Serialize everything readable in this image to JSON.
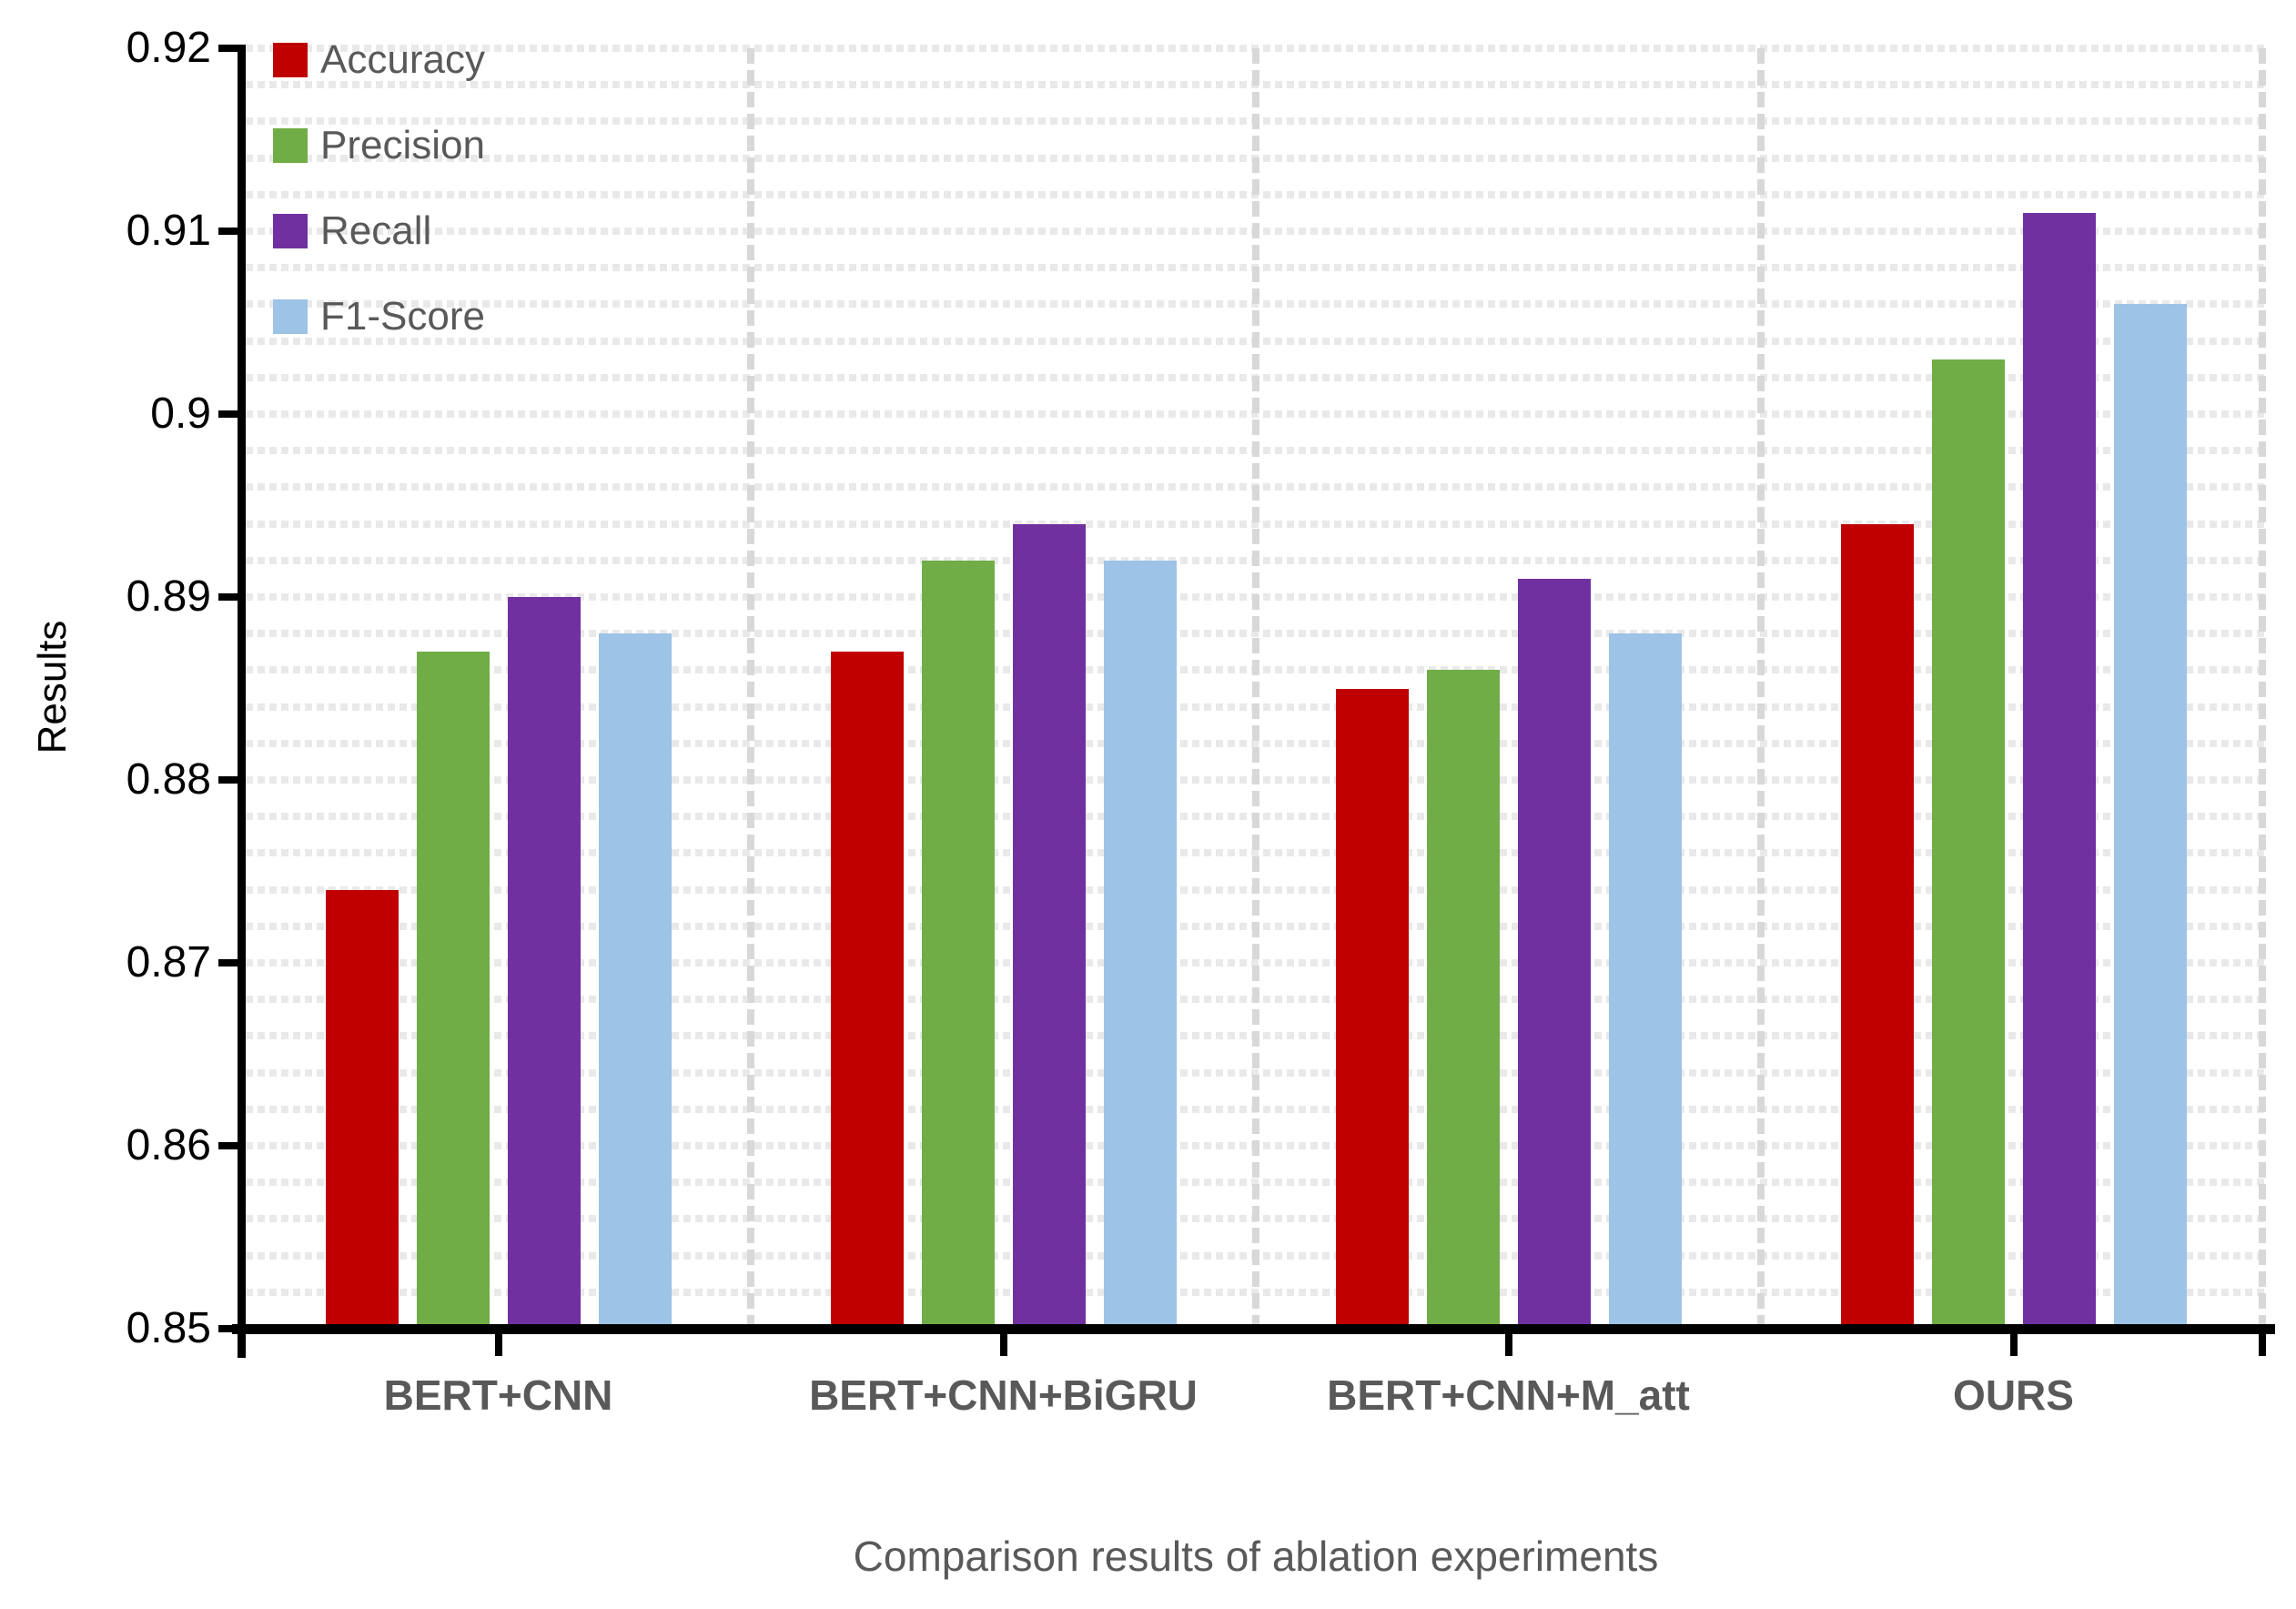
{
  "chart_data": {
    "type": "bar",
    "title": "Comparison results of ablation experiments",
    "ylabel": "Results",
    "xlabel": "",
    "categories": [
      "BERT+CNN",
      "BERT+CNN+BiGRU",
      "BERT+CNN+M_att",
      "OURS"
    ],
    "series": [
      {
        "name": "Accuracy",
        "color": "#C00000",
        "values": [
          0.874,
          0.887,
          0.885,
          0.894
        ]
      },
      {
        "name": "Precision",
        "color": "#70AD47",
        "values": [
          0.887,
          0.892,
          0.886,
          0.903
        ]
      },
      {
        "name": "Recall",
        "color": "#7030A0",
        "values": [
          0.89,
          0.894,
          0.891,
          0.911
        ]
      },
      {
        "name": "F1-Score",
        "color": "#9DC3E6",
        "values": [
          0.888,
          0.892,
          0.888,
          0.906
        ]
      }
    ],
    "ylim": [
      0.85,
      0.92
    ],
    "ytick_step": 0.01,
    "ytick_labels": [
      "0.85",
      "0.86",
      "0.87",
      "0.88",
      "0.89",
      "0.9",
      "0.91",
      "0.92"
    ],
    "minor_gridline_step": 0.002,
    "grid": "dotted horizontal minor gridlines; dashed vertical category separators",
    "legend_position": "top-left inside plot",
    "legend_entries": [
      "Accuracy",
      "Precision",
      "Recall",
      "F1-Score"
    ]
  }
}
